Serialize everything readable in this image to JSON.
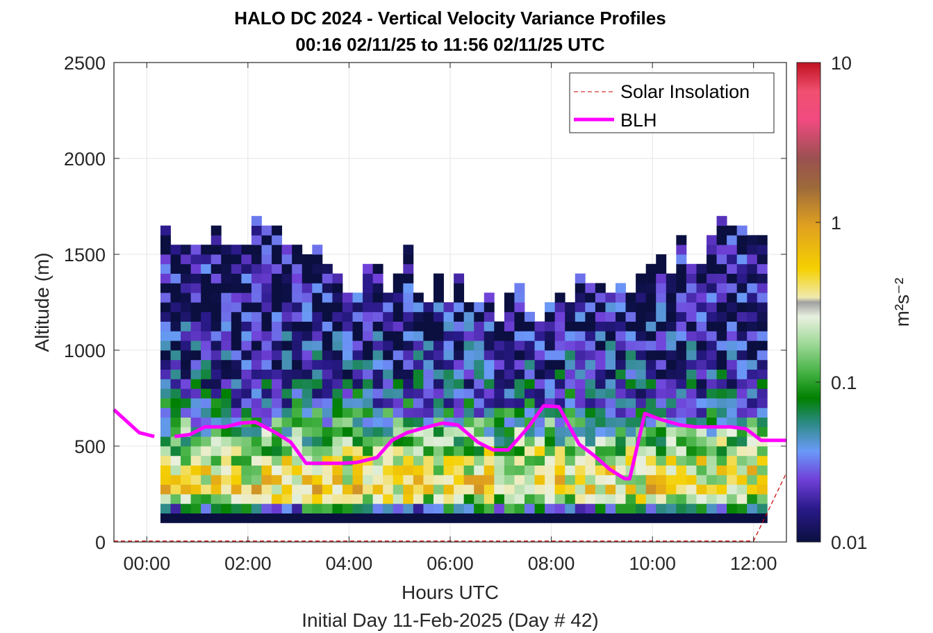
{
  "chart_data": {
    "type": "heatmap",
    "title_line1": "HALO DC 2024 - Vertical Velocity Variance Profiles",
    "title_line2": "00:16 02/11/25 to 11:56 02/11/25  UTC",
    "xlabel": "Hours UTC",
    "xlabel2": "Initial Day 11-Feb-2025 (Day # 42)",
    "ylabel": "Altitude (m)",
    "colorbar_label": "m²s⁻²",
    "xlim": [
      -0.65,
      12.65
    ],
    "ylim": [
      0,
      2500
    ],
    "x_ticks": [
      0,
      2,
      4,
      6,
      8,
      10,
      12
    ],
    "x_tick_labels": [
      "00:00",
      "02:00",
      "04:00",
      "06:00",
      "08:00",
      "10:00",
      "12:00"
    ],
    "y_ticks": [
      0,
      500,
      1000,
      1500,
      2000,
      2500
    ],
    "y_tick_labels": [
      "0",
      "500",
      "1000",
      "1500",
      "2000",
      "2500"
    ],
    "colorbar_scale": "log",
    "colorbar_range": [
      0.01,
      10
    ],
    "colorbar_ticks": [
      0.01,
      0.1,
      1,
      10
    ],
    "colorbar_tick_labels": [
      "0.01",
      "0.1",
      "1",
      "10"
    ],
    "grid": true,
    "legend_position": "top-right",
    "legend": [
      {
        "name": "Solar Insolation",
        "color": "#cc0000",
        "style": "dashed"
      },
      {
        "name": "BLH",
        "color": "#ff00ff",
        "style": "solid"
      }
    ],
    "heatmap": {
      "x_start": 0.27,
      "dx": 0.2,
      "y_start": 100,
      "dy": 50,
      "column_heights": [
        1650,
        1550,
        1550,
        1550,
        1550,
        1650,
        1550,
        1550,
        1550,
        1700,
        1650,
        1650,
        1550,
        1550,
        1500,
        1550,
        1450,
        1400,
        1300,
        1300,
        1450,
        1450,
        1300,
        1400,
        1550,
        1300,
        1250,
        1400,
        1250,
        1400,
        1250,
        1250,
        1300,
        1150,
        1300,
        1350,
        1200,
        1150,
        1250,
        1300,
        1250,
        1400,
        1350,
        1350,
        1300,
        1350,
        1300,
        1400,
        1450,
        1500,
        1400,
        1600,
        1450,
        1450,
        1600,
        1700,
        1650,
        1650,
        1600,
        1600
      ],
      "variance_profile": [
        {
          "altitude": 125,
          "value": 0.01
        },
        {
          "altitude": 250,
          "value": 0.45
        },
        {
          "altitude": 400,
          "value": 0.3
        },
        {
          "altitude": 550,
          "value": 0.12
        },
        {
          "altitude": 700,
          "value": 0.04
        },
        {
          "altitude": 900,
          "value": 0.025
        },
        {
          "altitude": 1200,
          "value": 0.015
        },
        {
          "altitude": 1600,
          "value": 0.012
        }
      ]
    },
    "blh": {
      "x": [
        -0.65,
        -0.15,
        0.15,
        0.55,
        0.85,
        1.15,
        1.55,
        1.85,
        2.15,
        2.55,
        2.85,
        3.15,
        3.55,
        3.85,
        4.15,
        4.55,
        4.85,
        5.15,
        5.55,
        5.85,
        6.15,
        6.55,
        6.85,
        7.15,
        7.55,
        7.85,
        8.15,
        8.55,
        8.85,
        9.15,
        9.45,
        9.55,
        9.85,
        10.15,
        10.55,
        10.85,
        11.15,
        11.55,
        11.85,
        12.15,
        12.65
      ],
      "y": [
        690,
        570,
        550,
        550,
        560,
        600,
        600,
        620,
        625,
        570,
        520,
        410,
        410,
        410,
        415,
        440,
        530,
        570,
        600,
        620,
        610,
        520,
        480,
        480,
        600,
        710,
        705,
        510,
        450,
        380,
        330,
        330,
        670,
        640,
        610,
        600,
        600,
        600,
        590,
        530,
        530
      ],
      "gap_after_index": 2
    },
    "solar_insolation": {
      "x": [
        -0.65,
        12.0,
        12.65
      ],
      "y": [
        5,
        5,
        360
      ]
    }
  }
}
